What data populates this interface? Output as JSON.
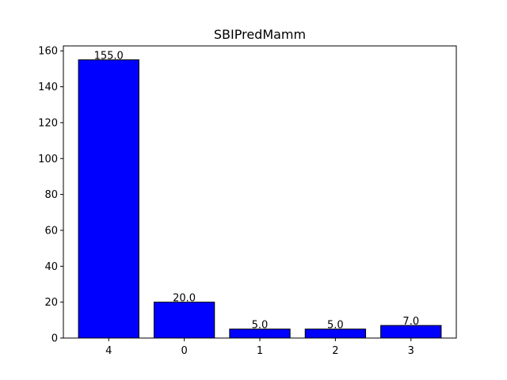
{
  "chart_data": {
    "type": "bar",
    "title": "SBIPredMamm",
    "xlabel": "",
    "ylabel": "",
    "categories": [
      "4",
      "0",
      "1",
      "2",
      "3"
    ],
    "values": [
      155.0,
      20.0,
      5.0,
      5.0,
      7.0
    ],
    "data_labels": [
      "155.0",
      "20.0",
      "5.0",
      "5.0",
      "7.0"
    ],
    "ylim": [
      0,
      162.75
    ],
    "yticks": [
      0,
      20,
      40,
      60,
      80,
      100,
      120,
      140,
      160
    ],
    "grid": false,
    "legend": "none",
    "colors": {
      "bar_fill": "#0000ff",
      "bar_edge": "#000000",
      "axis": "#000000"
    }
  }
}
